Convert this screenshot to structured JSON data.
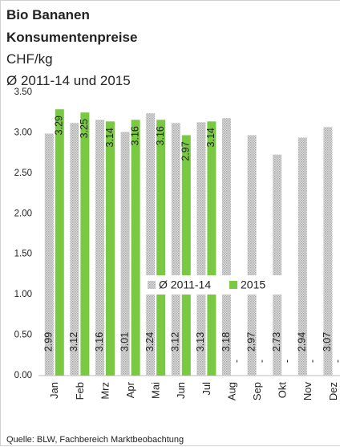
{
  "chart_data": {
    "type": "bar",
    "title": "Bio Bananen",
    "subtitle": "Konsumentenpreise",
    "unit": "CHF/kg",
    "period": "Ø 2011-14 und 2015",
    "source": "Quelle: BLW, Fachbereich Marktbeobachtung",
    "categories": [
      "Jan",
      "Feb",
      "Mrz",
      "Apr",
      "Mai",
      "Jun",
      "Jul",
      "Aug",
      "Sep",
      "Okt",
      "Nov",
      "Dez"
    ],
    "series": [
      {
        "name": "Ø 2011-14",
        "color": "#c8c8c8",
        "values": [
          2.99,
          3.12,
          3.16,
          3.01,
          3.24,
          3.12,
          3.13,
          3.18,
          2.97,
          2.73,
          2.94,
          3.07
        ]
      },
      {
        "name": "2015",
        "color": "#7ac943",
        "values": [
          3.29,
          3.25,
          3.14,
          3.16,
          3.16,
          2.97,
          3.14,
          null,
          null,
          null,
          null,
          null
        ],
        "value_labels": [
          "3.29",
          "3.25",
          "3.14",
          "3.16",
          "3.16",
          "2.97",
          "3.14",
          "-",
          "-",
          "-",
          "-",
          "-"
        ]
      }
    ],
    "ylim": [
      0,
      3.5
    ],
    "yticks": [
      {
        "value": 0,
        "label": "0.00"
      },
      {
        "value": 0.5,
        "label": "0.50"
      },
      {
        "value": 1,
        "label": "1.00"
      },
      {
        "value": 1.5,
        "label": "1.50"
      },
      {
        "value": 2,
        "label": "2.00"
      },
      {
        "value": 2.5,
        "label": "2.50"
      },
      {
        "value": 3,
        "label": "3.00"
      },
      {
        "value": 3.5,
        "label": "3.50"
      }
    ],
    "legend": "center"
  }
}
